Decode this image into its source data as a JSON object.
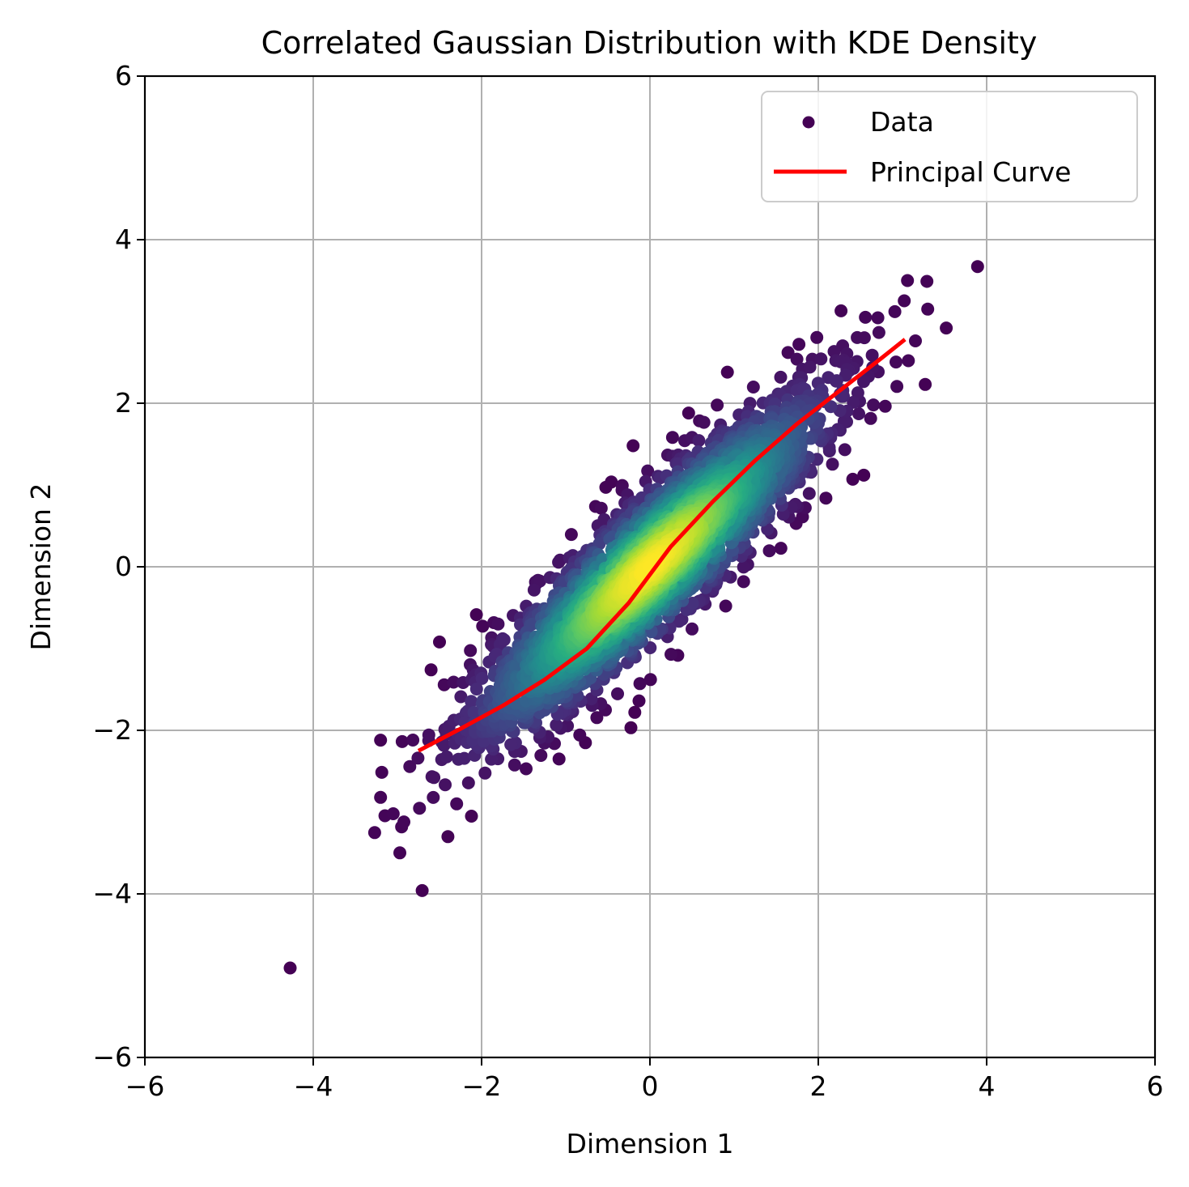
{
  "chart_data": {
    "type": "scatter",
    "title": "Correlated Gaussian Distribution with KDE Density",
    "xlabel": "Dimension 1",
    "ylabel": "Dimension 2",
    "xlim": [
      -6,
      6
    ],
    "ylim": [
      -6,
      6
    ],
    "xticks": [
      -6,
      -4,
      -2,
      0,
      2,
      4,
      6
    ],
    "yticks": [
      -6,
      -4,
      -2,
      0,
      2,
      4,
      6
    ],
    "xtick_labels": [
      "−6",
      "−4",
      "−2",
      "0",
      "2",
      "4",
      "6"
    ],
    "ytick_labels": [
      "−6",
      "−4",
      "−2",
      "0",
      "2",
      "4",
      "6"
    ],
    "grid": true,
    "legend": {
      "placement": "top-right",
      "entries": [
        "Data",
        "Principal Curve"
      ]
    },
    "colormap": "viridis",
    "series": [
      {
        "name": "Data",
        "kind": "scatter",
        "distribution": {
          "mean": [
            0,
            0
          ],
          "std": [
            1,
            1
          ],
          "correlation": 0.9,
          "n_points": 3000,
          "seed": 7
        },
        "outliers": [
          [
            -3.27,
            -3.25
          ],
          [
            -3.2,
            -2.82
          ],
          [
            -3.05,
            -3.02
          ],
          [
            -2.95,
            -3.18
          ],
          [
            -3.2,
            -2.12
          ],
          [
            -2.6,
            -1.26
          ],
          [
            -2.4,
            -3.3
          ],
          [
            -2.12,
            -3.05
          ],
          [
            -2.5,
            -0.92
          ],
          [
            -0.2,
            1.48
          ],
          [
            0.46,
            1.88
          ],
          [
            0.92,
            2.38
          ],
          [
            1.77,
            2.72
          ],
          [
            1.64,
            2.62
          ],
          [
            2.27,
            3.13
          ],
          [
            2.56,
            3.05
          ],
          [
            2.91,
            3.12
          ],
          [
            3.06,
            3.5
          ],
          [
            3.29,
            3.49
          ],
          [
            3.3,
            3.15
          ],
          [
            3.52,
            2.92
          ],
          [
            3.27,
            2.23
          ],
          [
            3.07,
            2.52
          ],
          [
            2.54,
            1.12
          ],
          [
            2.41,
            1.07
          ],
          [
            2.09,
            0.84
          ],
          [
            0.9,
            -0.48
          ],
          [
            0.5,
            -0.76
          ],
          [
            0.25,
            -1.07
          ],
          [
            -0.13,
            -1.64
          ],
          [
            -0.18,
            -1.78
          ],
          [
            -1.08,
            -2.35
          ]
        ],
        "color_min": "#440154",
        "color_max": "#fde725"
      },
      {
        "name": "Principal Curve",
        "kind": "line",
        "color": "#ff0000",
        "x": [
          -2.75,
          -2.25,
          -1.75,
          -1.25,
          -0.75,
          -0.25,
          0.25,
          0.75,
          1.25,
          1.75,
          2.25,
          2.75,
          3.03
        ],
        "y": [
          -2.25,
          -1.98,
          -1.7,
          -1.38,
          -1.0,
          -0.44,
          0.25,
          0.8,
          1.3,
          1.75,
          2.15,
          2.55,
          2.78
        ]
      }
    ]
  }
}
